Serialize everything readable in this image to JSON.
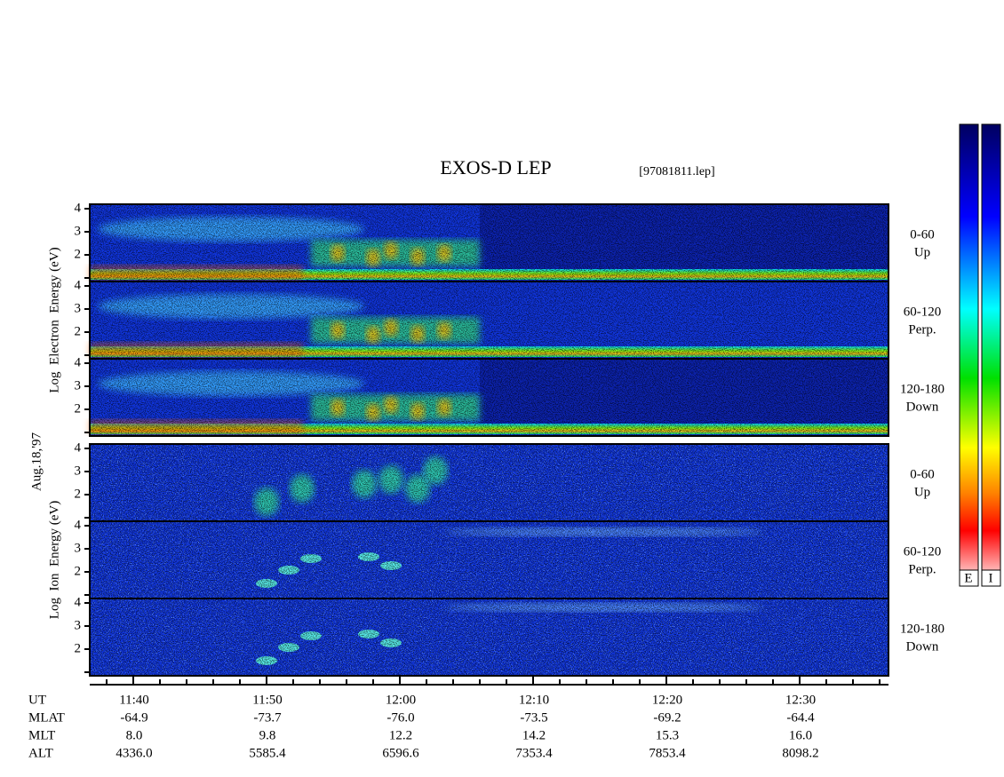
{
  "header": {
    "title": "EXOS-D LEP",
    "file": "[97081811.lep]"
  },
  "date": "Aug.18,'97",
  "energy_ticks": [
    2,
    3,
    4
  ],
  "groups": [
    {
      "axis_label": "Log  Electron  Energy (eV)",
      "panels": [
        {
          "pitch": "0-60",
          "direction": "Up"
        },
        {
          "pitch": "60-120",
          "direction": "Perp."
        },
        {
          "pitch": "120-180",
          "direction": "Down"
        }
      ]
    },
    {
      "axis_label": "Log  Ion  Energy (eV)",
      "panels": [
        {
          "pitch": "0-60",
          "direction": "Up"
        },
        {
          "pitch": "60-120",
          "direction": "Perp."
        },
        {
          "pitch": "120-180",
          "direction": "Down"
        }
      ]
    }
  ],
  "orbit_table": {
    "row_labels": [
      "UT",
      "MLAT",
      "MLT",
      "ALT"
    ],
    "rows": [
      [
        "11:40",
        "11:50",
        "12:00",
        "12:10",
        "12:20",
        "12:30"
      ],
      [
        "-64.9",
        "-73.7",
        "-76.0",
        "-73.5",
        "-69.2",
        "-64.4"
      ],
      [
        "8.0",
        "9.8",
        "12.2",
        "14.2",
        "15.3",
        "16.0"
      ],
      [
        "4336.0",
        "5585.4",
        "6596.6",
        "7353.4",
        "7853.4",
        "8098.2"
      ]
    ]
  },
  "colorbar_labels": [
    "E",
    "I"
  ]
}
